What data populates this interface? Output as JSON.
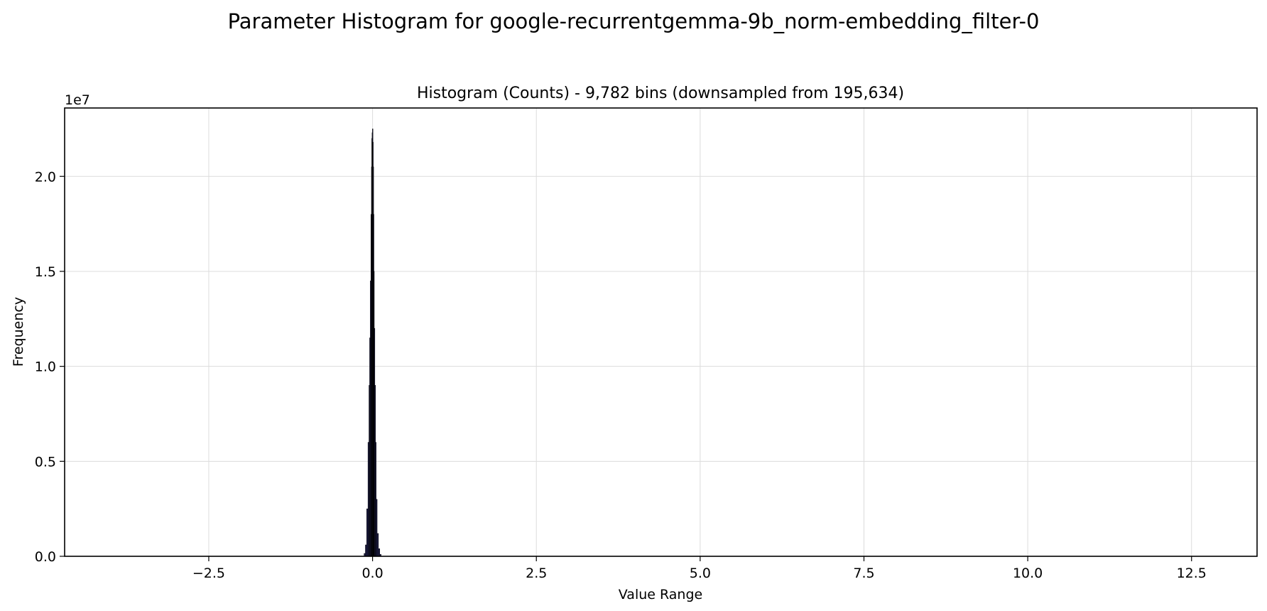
{
  "figure": {
    "suptitle": "Parameter Histogram for google-recurrentgemma-9b_norm-embedding_filter-0"
  },
  "chart_data": {
    "type": "bar",
    "title": "Histogram (Counts) - 9,782 bins (downsampled from 195,634)",
    "xlabel": "Value Range",
    "ylabel": "Frequency",
    "y_offset_label": "1e7",
    "xlim": [
      -4.7,
      13.5
    ],
    "ylim": [
      0,
      23600000
    ],
    "grid": true,
    "x_ticks": [
      -2.5,
      0.0,
      2.5,
      5.0,
      7.5,
      10.0,
      12.5
    ],
    "x_tick_labels": [
      "−2.5",
      "0.0",
      "2.5",
      "5.0",
      "7.5",
      "10.0",
      "12.5"
    ],
    "y_ticks": [
      0,
      5000000,
      10000000,
      15000000,
      20000000
    ],
    "y_tick_labels": [
      "0.0",
      "0.5",
      "1.0",
      "1.5",
      "2.0"
    ],
    "bar_color": "#1f1f4a",
    "bar_edge_color": "#000000",
    "bins": {
      "x": [
        -0.12,
        -0.1,
        -0.08,
        -0.06,
        -0.05,
        -0.04,
        -0.03,
        -0.02,
        -0.015,
        -0.01,
        -0.005,
        0.0,
        0.005,
        0.01,
        0.015,
        0.02,
        0.03,
        0.04,
        0.05,
        0.06,
        0.08,
        0.1,
        0.12
      ],
      "values": [
        150000,
        600000,
        2500000,
        6000000,
        9000000,
        11500000,
        14500000,
        18000000,
        20500000,
        22000000,
        22300000,
        22500000,
        21800000,
        20500000,
        18000000,
        15000000,
        12000000,
        9000000,
        6000000,
        3000000,
        1200000,
        400000,
        100000
      ]
    }
  }
}
